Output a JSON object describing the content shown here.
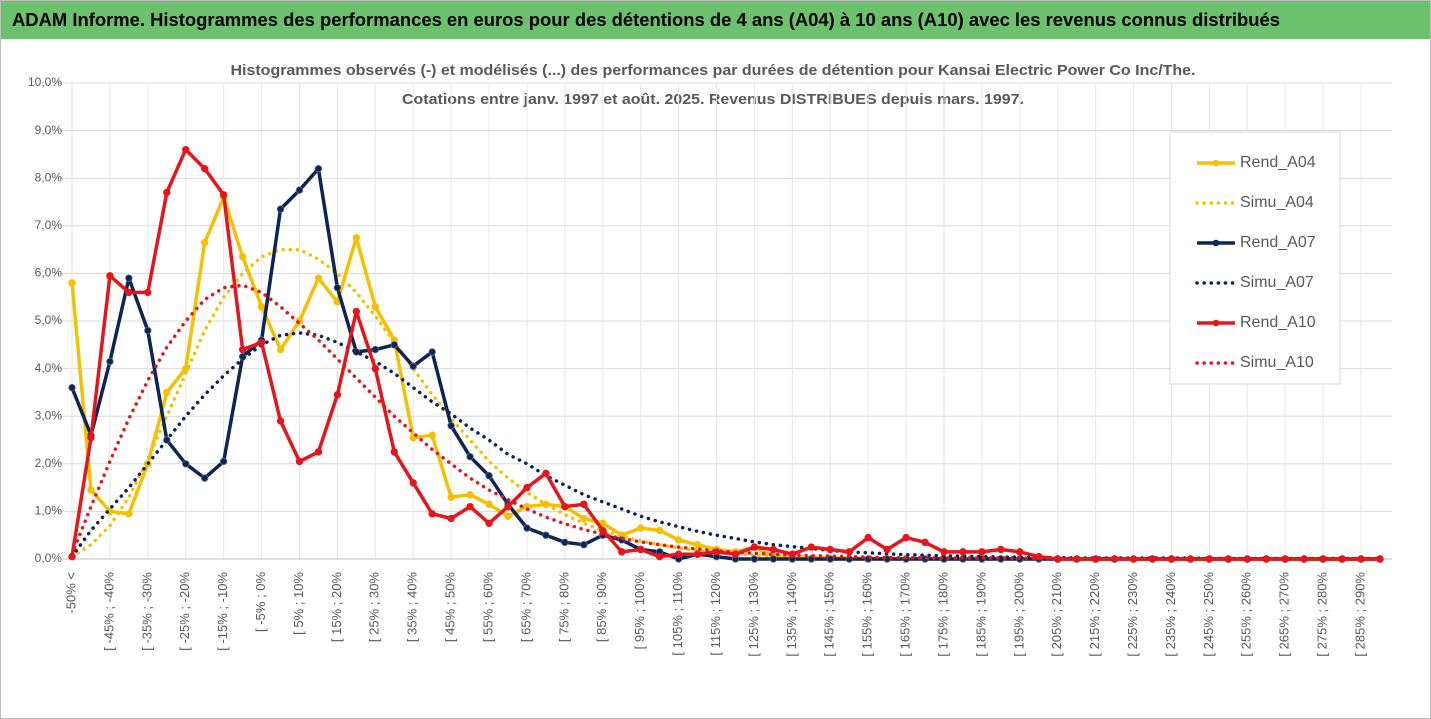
{
  "header": {
    "title": "ADAM Informe. Histogrammes des performances en euros pour des détentions de 4 ans (A04) à 10 ans (A10) avec les revenus connus distribués"
  },
  "chart_data": {
    "type": "line",
    "title": [
      "Histogrammes observés (-) et modélisés (...) des performances par durées de détention pour Kansai Electric Power Co Inc/The.",
      "Cotations entre janv. 1997 et août. 2025. Revenus DISTRIBUES depuis mars. 1997."
    ],
    "categories": [
      "-50% <",
      null,
      "[ -45% ; -40%",
      null,
      "[ -35% ; -30%",
      null,
      "[ -25% ; -20%",
      null,
      "[ -15% ; -10%",
      null,
      "[ -5% ; 0%",
      null,
      "[ 5% ; 10%",
      null,
      "[ 15% ; 20%",
      null,
      "[ 25% ; 30%",
      null,
      "[ 35% ; 40%",
      null,
      "[ 45% ; 50%",
      null,
      "[ 55% ; 60%",
      null,
      "[ 65% ; 70%",
      null,
      "[ 75% ; 80%",
      null,
      "[ 85% ; 90%",
      null,
      "[ 95% ; 100%",
      null,
      "[ 105% ; 110%",
      null,
      "[ 115% ; 120%",
      null,
      "[ 125% ; 130%",
      null,
      "[ 135% ; 140%",
      null,
      "[ 145% ; 150%",
      null,
      "[ 155% ; 160%",
      null,
      "[ 165% ; 170%",
      null,
      "[ 175% ; 180%",
      null,
      "[ 185% ; 190%",
      null,
      "[ 195% ; 200%",
      null,
      "[ 205% ; 210%",
      null,
      "[ 215% ; 220%",
      null,
      "[ 225% ; 230%",
      null,
      "[ 235% ; 240%",
      null,
      "[ 245% ; 250%",
      null,
      "[ 255% ; 260%",
      null,
      "[ 265% ; 270%",
      null,
      "[ 275% ; 280%",
      null,
      "[ 285% ; 290%",
      null
    ],
    "series": [
      {
        "name": "Rend_A04",
        "color": "#f5c000",
        "dashed": false,
        "markers": true,
        "values": [
          5.8,
          1.45,
          1.0,
          0.95,
          2.0,
          3.5,
          4.0,
          6.65,
          7.6,
          6.35,
          5.3,
          4.4,
          5.0,
          5.9,
          5.4,
          6.75,
          5.3,
          4.6,
          2.55,
          2.6,
          1.3,
          1.35,
          1.15,
          0.9,
          1.1,
          1.15,
          1.1,
          0.85,
          0.75,
          0.5,
          0.65,
          0.6,
          0.4,
          0.3,
          0.2,
          0.15,
          0.25,
          0.05,
          0,
          0,
          0,
          0,
          0,
          0,
          0,
          0,
          0,
          0,
          0,
          0,
          0,
          0,
          0,
          0,
          0,
          0,
          0,
          0,
          0,
          0,
          0,
          0,
          0,
          0,
          0,
          0,
          0,
          0,
          0,
          0
        ]
      },
      {
        "name": "Simu_A04",
        "color": "#f5c000",
        "dashed": true,
        "markers": false,
        "values": [
          0.05,
          0.3,
          0.7,
          1.3,
          2.1,
          3.0,
          3.9,
          4.8,
          5.5,
          6.0,
          6.35,
          6.5,
          6.5,
          6.3,
          6.0,
          5.6,
          5.1,
          4.55,
          4.0,
          3.45,
          2.95,
          2.5,
          2.05,
          1.7,
          1.4,
          1.15,
          0.93,
          0.75,
          0.6,
          0.48,
          0.38,
          0.3,
          0.23,
          0.18,
          0.14,
          0.11,
          0.08,
          0.06,
          0.05,
          0.04,
          0.03,
          0.02,
          0.02,
          0.01,
          0.01,
          0.01,
          0.01,
          0.01,
          0.01,
          0.01,
          0,
          0,
          0,
          0,
          0,
          0,
          0,
          0,
          0,
          0,
          0,
          0,
          0,
          0,
          0,
          0,
          0,
          0,
          0,
          0
        ]
      },
      {
        "name": "Rend_A07",
        "color": "#0d2456",
        "dashed": false,
        "markers": true,
        "values": [
          3.6,
          2.6,
          4.15,
          5.9,
          4.8,
          2.5,
          2.0,
          1.7,
          2.05,
          4.25,
          4.6,
          7.35,
          7.75,
          8.2,
          5.7,
          4.35,
          4.4,
          4.5,
          4.05,
          4.35,
          2.8,
          2.15,
          1.75,
          1.15,
          0.65,
          0.5,
          0.35,
          0.3,
          0.5,
          0.4,
          0.2,
          0.15,
          0,
          0.1,
          0.05,
          0,
          0,
          0,
          0,
          0,
          0,
          0,
          0,
          0,
          0,
          0,
          0,
          0,
          0,
          0,
          0,
          0,
          0,
          0,
          0,
          0,
          0,
          0,
          0,
          0,
          0,
          0,
          0,
          0,
          0,
          0,
          0,
          0,
          0,
          0
        ]
      },
      {
        "name": "Simu_A07",
        "color": "#0d2456",
        "dashed": true,
        "markers": false,
        "values": [
          0.05,
          0.6,
          1.05,
          1.5,
          2.0,
          2.5,
          3.0,
          3.45,
          3.85,
          4.2,
          4.5,
          4.7,
          4.75,
          4.7,
          4.55,
          4.35,
          4.15,
          3.9,
          3.6,
          3.3,
          3.05,
          2.75,
          2.5,
          2.2,
          2.0,
          1.75,
          1.55,
          1.35,
          1.2,
          1.05,
          0.9,
          0.78,
          0.68,
          0.58,
          0.5,
          0.43,
          0.36,
          0.3,
          0.26,
          0.22,
          0.18,
          0.15,
          0.13,
          0.11,
          0.09,
          0.08,
          0.07,
          0.06,
          0.05,
          0.04,
          0.04,
          0.03,
          0.03,
          0.02,
          0.02,
          0.02,
          0.02,
          0.02,
          0.02,
          0.02,
          0.01,
          0.01,
          0.01,
          0.01,
          0.01,
          0.01,
          0.01,
          0.01,
          0.01,
          0.01
        ]
      },
      {
        "name": "Rend_A10",
        "color": "#e8141c",
        "dashed": false,
        "markers": true,
        "values": [
          0.05,
          2.55,
          5.95,
          5.6,
          5.6,
          7.7,
          8.6,
          8.2,
          7.65,
          4.4,
          4.55,
          2.9,
          2.05,
          2.25,
          3.45,
          5.2,
          4.0,
          2.25,
          1.6,
          0.95,
          0.85,
          1.1,
          0.75,
          1.1,
          1.5,
          1.8,
          1.1,
          1.15,
          0.6,
          0.15,
          0.2,
          0.05,
          0.1,
          0.1,
          0.15,
          0.1,
          0.25,
          0.2,
          0.1,
          0.25,
          0.2,
          0.15,
          0.45,
          0.2,
          0.45,
          0.35,
          0.15,
          0.15,
          0.15,
          0.2,
          0.15,
          0.05,
          0,
          0,
          0,
          0,
          0,
          0,
          0,
          0,
          0,
          0,
          0,
          0,
          0,
          0,
          0,
          0,
          0,
          0
        ]
      },
      {
        "name": "Simu_A10",
        "color": "#e8141c",
        "dashed": true,
        "markers": false,
        "values": [
          0.1,
          1.1,
          2.05,
          2.95,
          3.75,
          4.45,
          5.0,
          5.45,
          5.7,
          5.75,
          5.6,
          5.3,
          4.95,
          4.6,
          4.2,
          3.8,
          3.4,
          3.0,
          2.65,
          2.3,
          2.0,
          1.7,
          1.45,
          1.25,
          1.05,
          0.88,
          0.74,
          0.62,
          0.52,
          0.43,
          0.36,
          0.3,
          0.25,
          0.21,
          0.17,
          0.14,
          0.12,
          0.1,
          0.08,
          0.07,
          0.06,
          0.05,
          0.04,
          0.03,
          0.03,
          0.02,
          0.02,
          0.02,
          0.02,
          0.02,
          0.02,
          0.01,
          0.01,
          0.01,
          0.01,
          0.01,
          0.01,
          0.01,
          0.01,
          0.01,
          0.01,
          0.01,
          0.01,
          0.01,
          0.01,
          0.01,
          0.01,
          0.01,
          0.01,
          0.01
        ]
      }
    ],
    "ylim": [
      0,
      10
    ],
    "yticks": [
      {
        "value": 0,
        "label": "0,0%"
      },
      {
        "value": 1,
        "label": "1,0%"
      },
      {
        "value": 2,
        "label": "2,0%"
      },
      {
        "value": 3,
        "label": "3,0%"
      },
      {
        "value": 4,
        "label": "4,0%"
      },
      {
        "value": 5,
        "label": "5,0%"
      },
      {
        "value": 6,
        "label": "6,0%"
      },
      {
        "value": 7,
        "label": "7,0%"
      },
      {
        "value": 8,
        "label": "8,0%"
      },
      {
        "value": 9,
        "label": "9,0%"
      },
      {
        "value": 10,
        "label": "10,0%"
      }
    ],
    "grid": true,
    "legend": "right"
  }
}
